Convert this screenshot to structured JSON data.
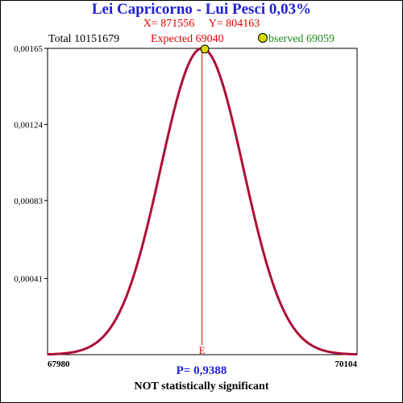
{
  "header": {
    "title": "Lei Capricorno - Lui Pesci  0,03%",
    "x_label": "X= 871556",
    "y_label": "Y= 804163",
    "total_label": "Total  10151679",
    "expected_label": "Expected  69040",
    "observed_label": "bserved  69059"
  },
  "footer": {
    "p_value": "P= 0,9388",
    "verdict": "NOT statistically significant"
  },
  "chart_data": {
    "type": "line",
    "title": "Lei Capricorno - Lui Pesci  0,03%",
    "xlabel": "",
    "ylabel": "",
    "xlim": [
      67980,
      70104
    ],
    "ylim": [
      0,
      0.00165
    ],
    "x_tick_labels": [
      "67980",
      "70104"
    ],
    "y_ticks": [
      0.00041,
      0.00083,
      0.00124,
      0.00165
    ],
    "y_tick_labels": [
      "0,00041",
      "0,00083",
      "0,00124",
      "0,00165"
    ],
    "grid": false,
    "series": [
      {
        "curve": "normal-distribution",
        "mean": 69040,
        "peak": 0.00165,
        "color": "#dd0000"
      }
    ],
    "expected": {
      "x": 69040,
      "label": "E",
      "color": "#e00000"
    },
    "observed": {
      "x": 69059,
      "color": "#d8d800"
    }
  }
}
